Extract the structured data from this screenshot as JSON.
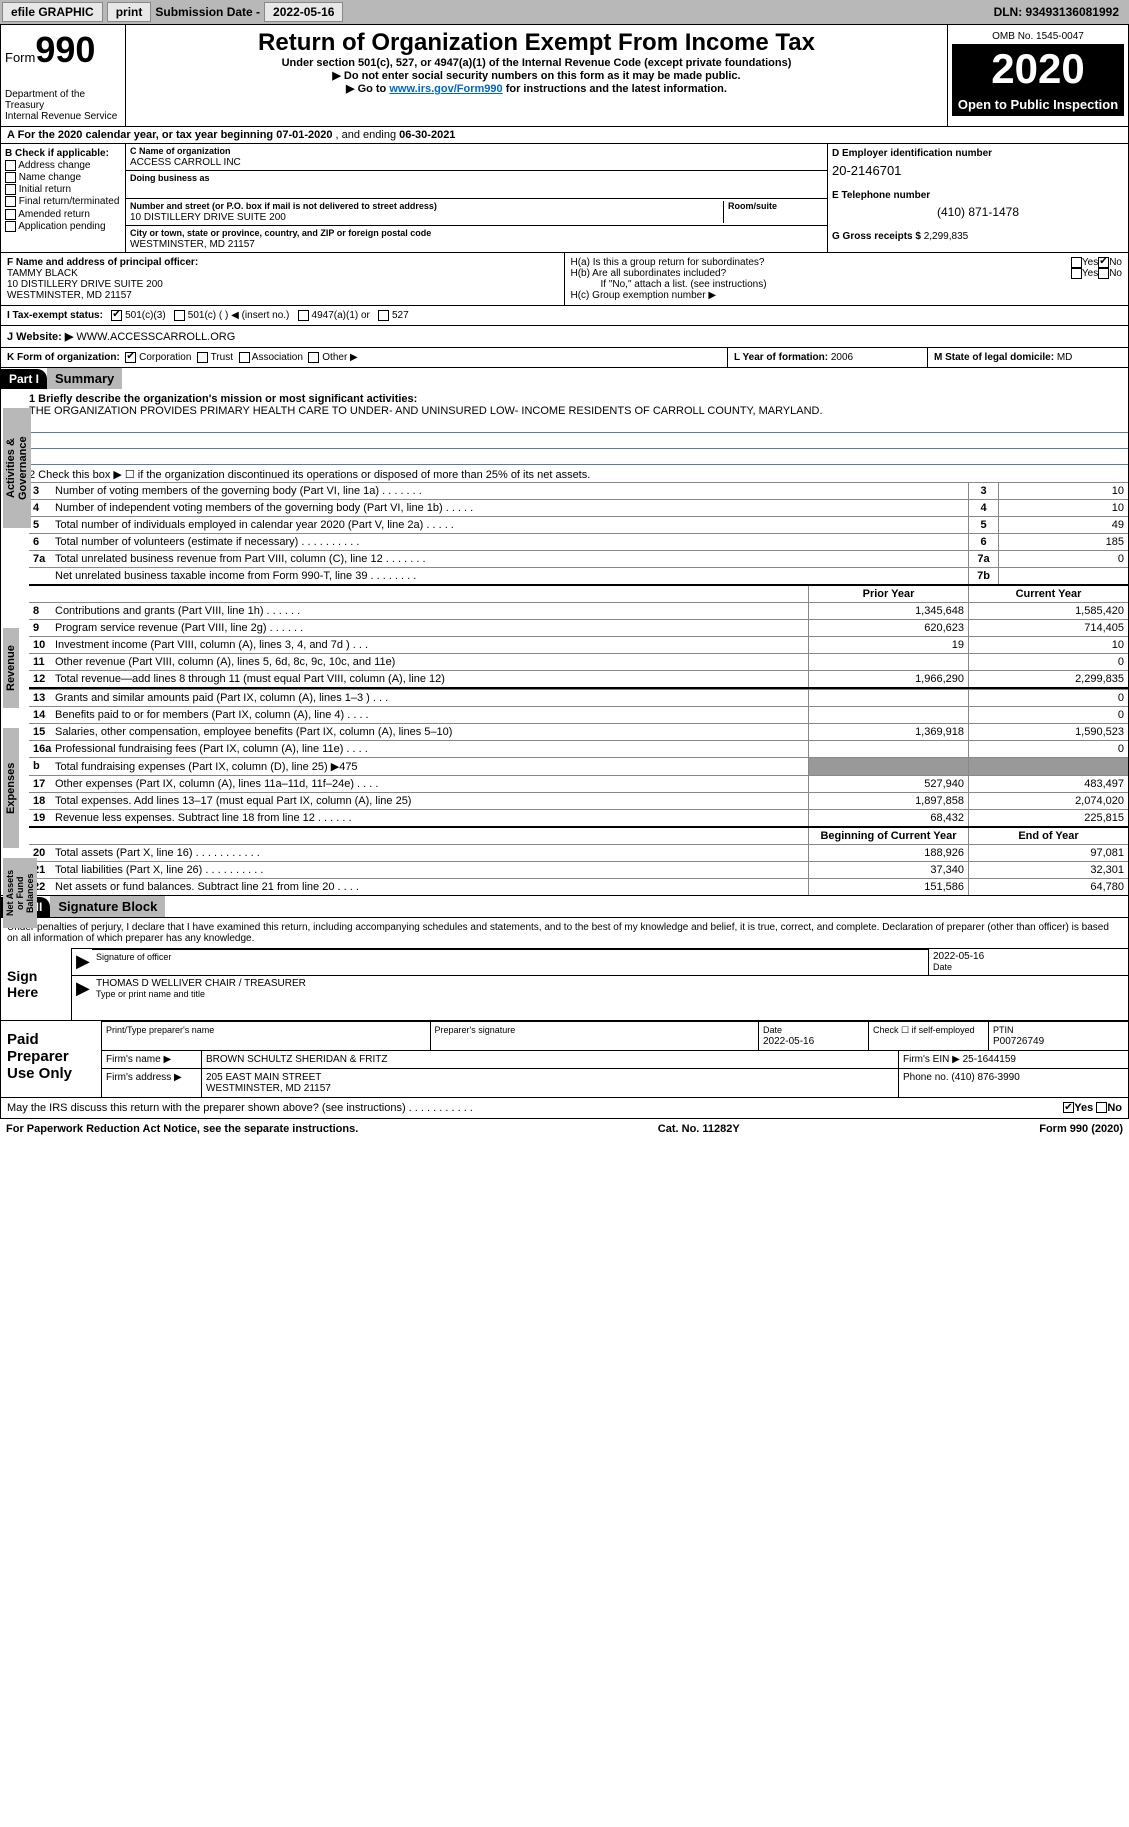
{
  "header_bar": {
    "efile": "efile GRAPHIC",
    "print": "print",
    "sub_label": "Submission Date - ",
    "sub_date": "2022-05-16",
    "dln": "DLN: 93493136081992"
  },
  "top": {
    "form_lbl": "Form",
    "form_num": "990",
    "dept": "Department of the Treasury\nInternal Revenue Service",
    "title": "Return of Organization Exempt From Income Tax",
    "sub1": "Under section 501(c), 527, or 4947(a)(1) of the Internal Revenue Code (except private foundations)",
    "sub2": "▶ Do not enter social security numbers on this form as it may be made public.",
    "sub3_pre": "▶ Go to ",
    "sub3_link": "www.irs.gov/Form990",
    "sub3_post": " for instructions and the latest information.",
    "omb": "OMB No. 1545-0047",
    "year": "2020",
    "insp": "Open to Public Inspection"
  },
  "line_a": {
    "pre": "A For the 2020 calendar year, or tax year beginning ",
    "begin": "07-01-2020",
    "mid": " , and ending ",
    "end": "06-30-2021"
  },
  "col_b": {
    "hdr": "B Check if applicable:",
    "items": [
      "Address change",
      "Name change",
      "Initial return",
      "Final return/terminated",
      "Amended return",
      "Application pending"
    ]
  },
  "col_c": {
    "name_lbl": "C Name of organization",
    "name": "ACCESS CARROLL INC",
    "dba_lbl": "Doing business as",
    "dba": "",
    "addr_lbl": "Number and street (or P.O. box if mail is not delivered to street address)",
    "room_lbl": "Room/suite",
    "addr": "10 DISTILLERY DRIVE SUITE 200",
    "city_lbl": "City or town, state or province, country, and ZIP or foreign postal code",
    "city": "WESTMINSTER, MD  21157"
  },
  "col_d": {
    "ein_lbl": "D Employer identification number",
    "ein": "20-2146701",
    "tel_lbl": "E Telephone number",
    "tel": "(410) 871-1478",
    "gross_lbl": "G Gross receipts $ ",
    "gross": "2,299,835"
  },
  "row_f": {
    "lbl": "F Name and address of principal officer:",
    "name": "TAMMY BLACK",
    "addr1": "10 DISTILLERY DRIVE SUITE 200",
    "addr2": "WESTMINSTER, MD  21157"
  },
  "row_h": {
    "ha": "H(a)  Is this a group return for subordinates?",
    "hb": "H(b)  Are all subordinates included?",
    "hb_note": "If \"No,\" attach a list. (see instructions)",
    "hc": "H(c)  Group exemption number ▶",
    "yes": "Yes",
    "no": "No"
  },
  "row_i": {
    "lbl": "I    Tax-exempt status:",
    "opts": [
      "501(c)(3)",
      "501(c) (  ) ◀ (insert no.)",
      "4947(a)(1) or",
      "527"
    ]
  },
  "row_j": {
    "lbl": "J   Website: ▶ ",
    "val": "WWW.ACCESSCARROLL.ORG"
  },
  "row_k": {
    "lbl": "K Form of organization:",
    "opts": [
      "Corporation",
      "Trust",
      "Association",
      "Other ▶"
    ]
  },
  "row_l": {
    "lbl": "L Year of formation: ",
    "val": "2006"
  },
  "row_m": {
    "lbl": "M State of legal domicile: ",
    "val": "MD"
  },
  "part1": {
    "hdr": "Part I",
    "title": "Summary",
    "l1_lbl": "1  Briefly describe the organization's mission or most significant activities:",
    "l1_txt": "THE ORGANIZATION PROVIDES PRIMARY HEALTH CARE TO UNDER- AND UNINSURED LOW- INCOME RESIDENTS OF CARROLL COUNTY, MARYLAND.",
    "l2": "2   Check this box ▶ ☐  if the organization discontinued its operations or disposed of more than 25% of its net assets.",
    "tabs": {
      "gov": "Activities & Governance",
      "rev": "Revenue",
      "exp": "Expenses",
      "net": "Net Assets or Fund Balances"
    },
    "lines_gov": [
      {
        "n": "3",
        "t": "Number of voting members of the governing body (Part VI, line 1a)  .    .    .    .    .    .    .",
        "nb": "3",
        "v": "10"
      },
      {
        "n": "4",
        "t": "Number of independent voting members of the governing body (Part VI, line 1b)   .    .    .    .    .",
        "nb": "4",
        "v": "10"
      },
      {
        "n": "5",
        "t": "Total number of individuals employed in calendar year 2020 (Part V, line 2a)   .    .    .    .    .",
        "nb": "5",
        "v": "49"
      },
      {
        "n": "6",
        "t": "Total number of volunteers (estimate if necessary)   .    .    .    .    .    .    .    .    .    .",
        "nb": "6",
        "v": "185"
      },
      {
        "n": "7a",
        "t": "Total unrelated business revenue from Part VIII, column (C), line 12  .   .    .    .    .    .    .",
        "nb": "7a",
        "v": "0"
      },
      {
        "n": "",
        "t": "Net unrelated business taxable income from Form 990-T, line 39   .    .    .    .    .    .    .    .",
        "nb": "7b",
        "v": ""
      }
    ],
    "col_hdr_py": "Prior Year",
    "col_hdr_cy": "Current Year",
    "lines_rev": [
      {
        "n": "8",
        "t": "Contributions and grants (Part VIII, line 1h)   .    .    .    .    .    .",
        "py": "1,345,648",
        "cy": "1,585,420"
      },
      {
        "n": "9",
        "t": "Program service revenue (Part VIII, line 2g)    .    .    .    .    .    .",
        "py": "620,623",
        "cy": "714,405"
      },
      {
        "n": "10",
        "t": "Investment income (Part VIII, column (A), lines 3, 4, and 7d )   .    .    .",
        "py": "19",
        "cy": "10"
      },
      {
        "n": "11",
        "t": "Other revenue (Part VIII, column (A), lines 5, 6d, 8c, 9c, 10c, and 11e)",
        "py": "",
        "cy": "0"
      },
      {
        "n": "12",
        "t": "Total revenue—add lines 8 through 11 (must equal Part VIII, column (A), line 12)",
        "py": "1,966,290",
        "cy": "2,299,835"
      }
    ],
    "lines_exp": [
      {
        "n": "13",
        "t": "Grants and similar amounts paid (Part IX, column (A), lines 1–3 )  .    .    .",
        "py": "",
        "cy": "0"
      },
      {
        "n": "14",
        "t": "Benefits paid to or for members (Part IX, column (A), line 4)   .    .    .    .",
        "py": "",
        "cy": "0"
      },
      {
        "n": "15",
        "t": "Salaries, other compensation, employee benefits (Part IX, column (A), lines 5–10)",
        "py": "1,369,918",
        "cy": "1,590,523"
      },
      {
        "n": "16a",
        "t": "Professional fundraising fees (Part IX, column (A), line 11e)   .    .    .    .",
        "py": "",
        "cy": "0"
      },
      {
        "n": "b",
        "t": "Total fundraising expenses (Part IX, column (D), line 25) ▶475",
        "py": "GRAY",
        "cy": "GRAY"
      },
      {
        "n": "17",
        "t": "Other expenses (Part IX, column (A), lines 11a–11d, 11f–24e)   .    .    .    .",
        "py": "527,940",
        "cy": "483,497"
      },
      {
        "n": "18",
        "t": "Total expenses. Add lines 13–17 (must equal Part IX, column (A), line 25)",
        "py": "1,897,858",
        "cy": "2,074,020"
      },
      {
        "n": "19",
        "t": "Revenue less expenses. Subtract line 18 from line 12  .    .    .    .    .    .",
        "py": "68,432",
        "cy": "225,815"
      }
    ],
    "col_hdr_boy": "Beginning of Current Year",
    "col_hdr_eoy": "End of Year",
    "lines_net": [
      {
        "n": "20",
        "t": "Total assets (Part X, line 16)  .    .    .    .    .    .    .    .    .    .    .",
        "py": "188,926",
        "cy": "97,081"
      },
      {
        "n": "21",
        "t": "Total liabilities (Part X, line 26)  .    .    .    .    .    .    .    .    .    .",
        "py": "37,340",
        "cy": "32,301"
      },
      {
        "n": "22",
        "t": "Net assets or fund balances. Subtract line 21 from line 20  .    .    .    .",
        "py": "151,586",
        "cy": "64,780"
      }
    ]
  },
  "part2": {
    "hdr": "Part II",
    "title": "Signature Block",
    "decl": "Under penalties of perjury, I declare that I have examined this return, including accompanying schedules and statements, and to the best of my knowledge and belief, it is true, correct, and complete. Declaration of preparer (other than officer) is based on all information of which preparer has any knowledge.",
    "sign_here": "Sign Here",
    "sig_officer_lbl": "Signature of officer",
    "sig_date_lbl": "Date",
    "sig_date": "2022-05-16",
    "name_title": "THOMAS D WELLIVER CHAIR / TREASURER",
    "name_title_lbl": "Type or print name and title",
    "paid_lbl": "Paid Preparer Use Only",
    "prep_name_lbl": "Print/Type preparer's name",
    "prep_name": "",
    "prep_sig_lbl": "Preparer's signature",
    "prep_date_lbl": "Date",
    "prep_date": "2022-05-16",
    "self_emp_lbl": "Check ☐ if self-employed",
    "ptin_lbl": "PTIN",
    "ptin": "P00726749",
    "firm_name_lbl": "Firm's name    ▶ ",
    "firm_name": "BROWN SCHULTZ SHERIDAN & FRITZ",
    "firm_ein_lbl": "Firm's EIN ▶ ",
    "firm_ein": "25-1644159",
    "firm_addr_lbl": "Firm's address ▶ ",
    "firm_addr1": "205 EAST MAIN STREET",
    "firm_addr2": "WESTMINSTER, MD  21157",
    "phone_lbl": "Phone no. ",
    "phone": "(410) 876-3990",
    "irs_q": "May the IRS discuss this return with the preparer shown above? (see instructions)    .    .    .    .    .    .    .    .    .    .    .",
    "yes": "Yes",
    "no": "No"
  },
  "footer": {
    "pra": "For Paperwork Reduction Act Notice, see the separate instructions.",
    "cat": "Cat. No. 11282Y",
    "form": "Form 990 (2020)"
  }
}
